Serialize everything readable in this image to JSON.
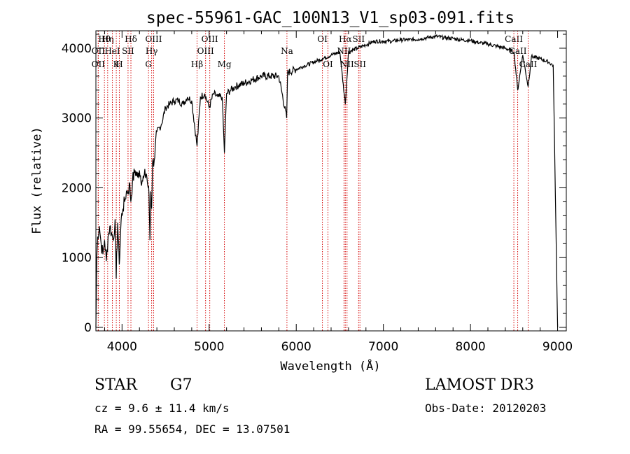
{
  "chart_data": {
    "type": "line",
    "title": "spec-55961-GAC_100N13_V1_sp03-091.fits",
    "xlabel": "Wavelength (Å)",
    "ylabel": "Flux (relative)",
    "xlim": [
      3700,
      9100
    ],
    "ylim": [
      -50,
      4250
    ],
    "x_ticks": [
      4000,
      5000,
      6000,
      7000,
      8000,
      9000
    ],
    "y_ticks": [
      0,
      1000,
      2000,
      3000,
      4000
    ],
    "grid": false,
    "series": [
      {
        "name": "flux",
        "x": [
          3700,
          3710,
          3720,
          3740,
          3760,
          3780,
          3800,
          3820,
          3840,
          3860,
          3880,
          3900,
          3920,
          3933,
          3950,
          3968,
          3990,
          4010,
          4030,
          4050,
          4070,
          4090,
          4101,
          4120,
          4150,
          4180,
          4200,
          4230,
          4250,
          4280,
          4300,
          4310,
          4320,
          4330,
          4340,
          4350,
          4370,
          4400,
          4450,
          4500,
          4550,
          4600,
          4650,
          4700,
          4750,
          4800,
          4861,
          4900,
          4950,
          5000,
          5050,
          5100,
          5150,
          5175,
          5200,
          5250,
          5300,
          5400,
          5500,
          5600,
          5700,
          5800,
          5890,
          5900,
          6000,
          6100,
          6200,
          6300,
          6400,
          6500,
          6563,
          6600,
          6700,
          6800,
          6900,
          7000,
          7100,
          7200,
          7300,
          7400,
          7500,
          7600,
          7700,
          7800,
          7900,
          8000,
          8100,
          8200,
          8300,
          8400,
          8500,
          8542,
          8600,
          8662,
          8700,
          8800,
          8900,
          8950,
          9000
        ],
        "y": [
          0,
          1000,
          1300,
          1450,
          1200,
          1050,
          1250,
          950,
          1300,
          1450,
          1350,
          1250,
          1550,
          700,
          1500,
          900,
          1550,
          1700,
          1800,
          1950,
          1950,
          2050,
          1800,
          2100,
          2250,
          2150,
          2250,
          2100,
          2150,
          2200,
          2000,
          1900,
          1250,
          1950,
          1700,
          2350,
          2400,
          2800,
          2900,
          3150,
          3200,
          3250,
          3250,
          3200,
          3300,
          3250,
          2600,
          3300,
          3350,
          3150,
          3350,
          3300,
          3300,
          2500,
          3350,
          3400,
          3450,
          3500,
          3550,
          3600,
          3600,
          3600,
          3000,
          3650,
          3700,
          3750,
          3800,
          3850,
          3900,
          3950,
          3200,
          3950,
          4000,
          4050,
          4100,
          4100,
          4100,
          4120,
          4120,
          4130,
          4150,
          4170,
          4150,
          4140,
          4120,
          4110,
          4080,
          4060,
          4030,
          4000,
          3950,
          3400,
          3900,
          3450,
          3880,
          3850,
          3800,
          3750,
          0
        ]
      }
    ],
    "lines": [
      {
        "label": "Hθ",
        "wl": 3798
      },
      {
        "label": "OII",
        "wl": 3727
      },
      {
        "label": "OII",
        "wl": 3727
      },
      {
        "label": "Hη",
        "wl": 3835
      },
      {
        "label": "HeI",
        "wl": 3889
      },
      {
        "label": "K",
        "wl": 3934
      },
      {
        "label": "H",
        "wl": 3969
      },
      {
        "label": "SII",
        "wl": 4069
      },
      {
        "label": "Hδ",
        "wl": 4102
      },
      {
        "label": "OIII",
        "wl": 4363
      },
      {
        "label": "Hγ",
        "wl": 4340
      },
      {
        "label": "G",
        "wl": 4304
      },
      {
        "label": "OIII",
        "wl": 5007
      },
      {
        "label": "OIII",
        "wl": 4959
      },
      {
        "label": "Hβ",
        "wl": 4861
      },
      {
        "label": "Mg",
        "wl": 5175
      },
      {
        "label": "Na",
        "wl": 5893
      },
      {
        "label": "OI",
        "wl": 6300
      },
      {
        "label": "OI",
        "wl": 6364
      },
      {
        "label": "Hα",
        "wl": 6563
      },
      {
        "label": "SII",
        "wl": 6716
      },
      {
        "label": "NII",
        "wl": 6548
      },
      {
        "label": "NII",
        "wl": 6583
      },
      {
        "label": "SII",
        "wl": 6731
      },
      {
        "label": "CaII",
        "wl": 8498
      },
      {
        "label": "CaII",
        "wl": 8542
      },
      {
        "label": "CaII",
        "wl": 8662
      }
    ]
  },
  "footer": {
    "class_label": "STAR",
    "subclass": "G7",
    "survey": "LAMOST DR3",
    "redshift": "cz = 9.6 ± 11.4 km/s",
    "obs_date": "Obs-Date: 20120203",
    "coords": "RA =  99.55654, DEC =  13.07501"
  }
}
